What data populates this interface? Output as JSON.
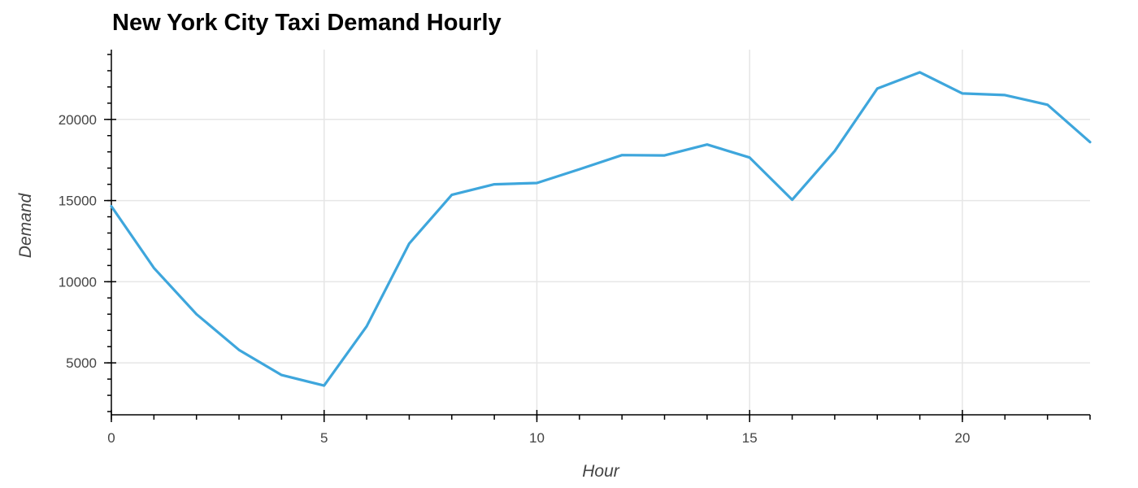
{
  "chart_data": {
    "type": "line",
    "title": "New York City Taxi Demand Hourly",
    "xlabel": "Hour",
    "ylabel": "Demand",
    "xlim": [
      0,
      23
    ],
    "ylim": [
      1800,
      24300
    ],
    "x_ticks": [
      0,
      5,
      10,
      15,
      20
    ],
    "y_ticks": [
      5000,
      10000,
      15000,
      20000
    ],
    "grid": true,
    "legend": "none",
    "colors": {
      "line": "#3ea6dc",
      "grid": "#e6e6e6",
      "axis": "#000000",
      "text": "#444444"
    },
    "series": [
      {
        "x": [
          0,
          1,
          2,
          3,
          4,
          5,
          6,
          7,
          8,
          9,
          10,
          11,
          12,
          13,
          14,
          15,
          16,
          17,
          18,
          19,
          20,
          21,
          22,
          23
        ],
        "values": [
          14650,
          10850,
          8000,
          5800,
          4250,
          3600,
          7250,
          12350,
          15350,
          16000,
          16080,
          16930,
          17800,
          17780,
          18450,
          17650,
          15050,
          18050,
          21900,
          22900,
          21600,
          21500,
          20900,
          18600
        ]
      }
    ]
  }
}
